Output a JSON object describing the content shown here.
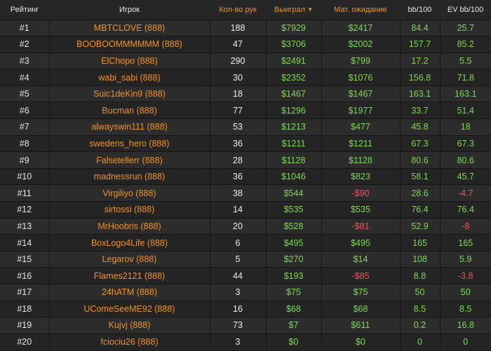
{
  "columns": {
    "rank": "Рейтинг",
    "player": "Игрок",
    "hands": "Кол-во рук",
    "won": "Выиграл",
    "ev": "Мат. ожидание",
    "bb": "bb/100",
    "evbb": "EV bb/100"
  },
  "sort_indicator": "▼",
  "colors": {
    "accent": "#f0922a",
    "positive": "#7ed957",
    "negative": "#f2545b"
  },
  "rows": [
    {
      "rank": "#1",
      "player": "MBTCLOVE (888)",
      "hands": "188",
      "won": "$7929",
      "ev": "$2417",
      "bb": "84.4",
      "evbb": "25.7"
    },
    {
      "rank": "#2",
      "player": "BOOBOOMMMMMM (888)",
      "hands": "47",
      "won": "$3706",
      "ev": "$2002",
      "bb": "157.7",
      "evbb": "85.2"
    },
    {
      "rank": "#3",
      "player": "ElChopo (888)",
      "hands": "290",
      "won": "$2491",
      "ev": "$799",
      "bb": "17.2",
      "evbb": "5.5"
    },
    {
      "rank": "#4",
      "player": "wabi_sabi (888)",
      "hands": "30",
      "won": "$2352",
      "ev": "$1076",
      "bb": "156.8",
      "evbb": "71.8"
    },
    {
      "rank": "#5",
      "player": "Suic1deKin9 (888)",
      "hands": "18",
      "won": "$1467",
      "ev": "$1467",
      "bb": "163.1",
      "evbb": "163.1"
    },
    {
      "rank": "#6",
      "player": "Bucman (888)",
      "hands": "77",
      "won": "$1296",
      "ev": "$1977",
      "bb": "33.7",
      "evbb": "51.4"
    },
    {
      "rank": "#7",
      "player": "alwayswin111 (888)",
      "hands": "53",
      "won": "$1213",
      "ev": "$477",
      "bb": "45.8",
      "evbb": "18"
    },
    {
      "rank": "#8",
      "player": "swedens_hero (888)",
      "hands": "36",
      "won": "$1211",
      "ev": "$1211",
      "bb": "67.3",
      "evbb": "67.3"
    },
    {
      "rank": "#9",
      "player": "Falsetellerr (888)",
      "hands": "28",
      "won": "$1128",
      "ev": "$1128",
      "bb": "80.6",
      "evbb": "80.6"
    },
    {
      "rank": "#10",
      "player": "madnessrun (888)",
      "hands": "36",
      "won": "$1046",
      "ev": "$823",
      "bb": "58.1",
      "evbb": "45.7"
    },
    {
      "rank": "#11",
      "player": "Virgiliyo (888)",
      "hands": "38",
      "won": "$544",
      "ev": "-$90",
      "bb": "28.6",
      "evbb": "-4.7"
    },
    {
      "rank": "#12",
      "player": "sirtossi (888)",
      "hands": "14",
      "won": "$535",
      "ev": "$535",
      "bb": "76.4",
      "evbb": "76.4"
    },
    {
      "rank": "#13",
      "player": "MrHoobris (888)",
      "hands": "20",
      "won": "$528",
      "ev": "-$81",
      "bb": "52.9",
      "evbb": "-8"
    },
    {
      "rank": "#14",
      "player": "BoxLogo4Life (888)",
      "hands": "6",
      "won": "$495",
      "ev": "$495",
      "bb": "165",
      "evbb": "165"
    },
    {
      "rank": "#15",
      "player": "Legarov (888)",
      "hands": "5",
      "won": "$270",
      "ev": "$14",
      "bb": "108",
      "evbb": "5.9"
    },
    {
      "rank": "#16",
      "player": "Flames2121 (888)",
      "hands": "44",
      "won": "$193",
      "ev": "-$85",
      "bb": "8.8",
      "evbb": "-3.8"
    },
    {
      "rank": "#17",
      "player": "24hATM (888)",
      "hands": "3",
      "won": "$75",
      "ev": "$75",
      "bb": "50",
      "evbb": "50"
    },
    {
      "rank": "#18",
      "player": "UComeSeeME92 (888)",
      "hands": "16",
      "won": "$68",
      "ev": "$68",
      "bb": "8.5",
      "evbb": "8.5"
    },
    {
      "rank": "#19",
      "player": "Kujvj (888)",
      "hands": "73",
      "won": "$7",
      "ev": "$611",
      "bb": "0.2",
      "evbb": "16.8"
    },
    {
      "rank": "#20",
      "player": "fciociu26 (888)",
      "hands": "3",
      "won": "$0",
      "ev": "$0",
      "bb": "0",
      "evbb": "0"
    }
  ]
}
